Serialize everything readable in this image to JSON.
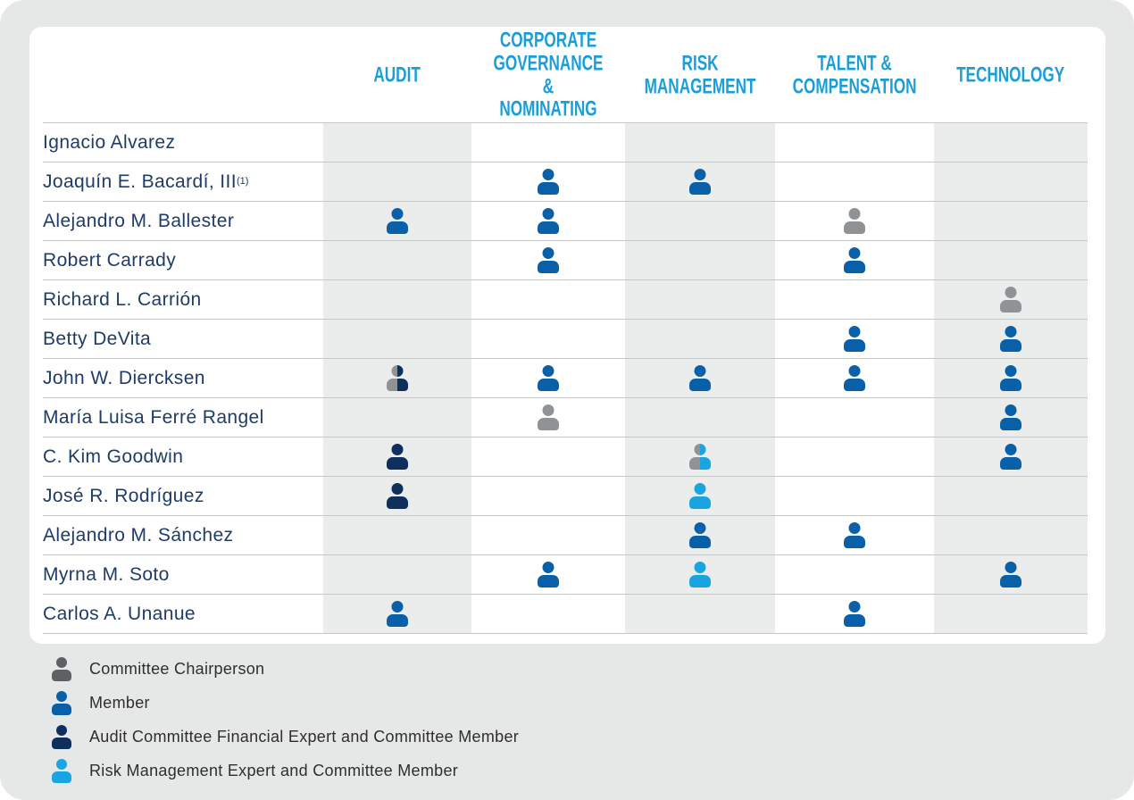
{
  "palette": {
    "bg_gray": "#E6E8E7",
    "card_white": "#FFFFFF",
    "line_gray": "#C6C8C8",
    "shade_gray": "#EBECEC",
    "header_cyan": "#1A9ED9",
    "name_navy": "#1E3C69",
    "member_blue": "#0A60A8",
    "chair_gray": "#8F9396",
    "legend_chair_gray": "#5E6163",
    "audit_navy": "#0F2F5C",
    "risk_lightblue": "#19A5E2",
    "legend_text": "#2E2E2E"
  },
  "table": {
    "column_keys": [
      "audit",
      "governance",
      "risk",
      "talent",
      "technology"
    ],
    "shaded_columns": [
      "audit",
      "risk",
      "technology"
    ],
    "columns": [
      {
        "id": "audit",
        "label": "AUDIT"
      },
      {
        "id": "governance",
        "label": "CORPORATE\nGOVERNANCE &\nNOMINATING"
      },
      {
        "id": "risk",
        "label": "RISK\nMANAGEMENT"
      },
      {
        "id": "talent",
        "label": "TALENT &\nCOMPENSATION"
      },
      {
        "id": "technology",
        "label": "TECHNOLOGY"
      }
    ],
    "rows": [
      {
        "name": "Ignacio Alvarez",
        "sup": "",
        "committees": {
          "audit": "",
          "governance": "",
          "risk": "",
          "talent": "",
          "technology": ""
        }
      },
      {
        "name": "Joaquín E. Bacardí, III",
        "sup": "(1)",
        "committees": {
          "audit": "",
          "governance": "member",
          "risk": "member",
          "talent": "",
          "technology": ""
        }
      },
      {
        "name": "Alejandro M. Ballester",
        "sup": "",
        "committees": {
          "audit": "member",
          "governance": "member",
          "risk": "",
          "talent": "chair",
          "technology": ""
        }
      },
      {
        "name": "Robert Carrady",
        "sup": "",
        "committees": {
          "audit": "",
          "governance": "member",
          "risk": "",
          "talent": "member",
          "technology": ""
        }
      },
      {
        "name": "Richard L. Carrión",
        "sup": "",
        "committees": {
          "audit": "",
          "governance": "",
          "risk": "",
          "talent": "",
          "technology": "chair"
        }
      },
      {
        "name": "Betty DeVita",
        "sup": "",
        "committees": {
          "audit": "",
          "governance": "",
          "risk": "",
          "talent": "member",
          "technology": "member"
        }
      },
      {
        "name": "John W. Diercksen",
        "sup": "",
        "committees": {
          "audit": "chair_audit",
          "governance": "member",
          "risk": "member",
          "talent": "member",
          "technology": "member"
        }
      },
      {
        "name": "María Luisa Ferré Rangel",
        "sup": "",
        "committees": {
          "audit": "",
          "governance": "chair",
          "risk": "",
          "talent": "",
          "technology": "member"
        }
      },
      {
        "name": "C. Kim Goodwin",
        "sup": "",
        "committees": {
          "audit": "audit_expert",
          "governance": "",
          "risk": "chair_risk",
          "talent": "",
          "technology": "member"
        }
      },
      {
        "name": "José R. Rodríguez",
        "sup": "",
        "committees": {
          "audit": "audit_expert",
          "governance": "",
          "risk": "risk_expert",
          "talent": "",
          "technology": ""
        }
      },
      {
        "name": "Alejandro M. Sánchez",
        "sup": "",
        "committees": {
          "audit": "",
          "governance": "",
          "risk": "member",
          "talent": "member",
          "technology": ""
        }
      },
      {
        "name": "Myrna M. Soto",
        "sup": "",
        "committees": {
          "audit": "",
          "governance": "member",
          "risk": "risk_expert",
          "talent": "",
          "technology": "member"
        }
      },
      {
        "name": "Carlos A. Unanue",
        "sup": "",
        "committees": {
          "audit": "member",
          "governance": "",
          "risk": "",
          "talent": "member",
          "technology": ""
        }
      }
    ]
  },
  "legend": {
    "items": [
      {
        "type": "chair",
        "label": "Committee Chairperson"
      },
      {
        "type": "member",
        "label": "Member"
      },
      {
        "type": "audit_expert",
        "label": "Audit Committee Financial Expert and Committee Member"
      },
      {
        "type": "risk_expert",
        "label": "Risk Management Expert and Committee Member"
      }
    ]
  }
}
